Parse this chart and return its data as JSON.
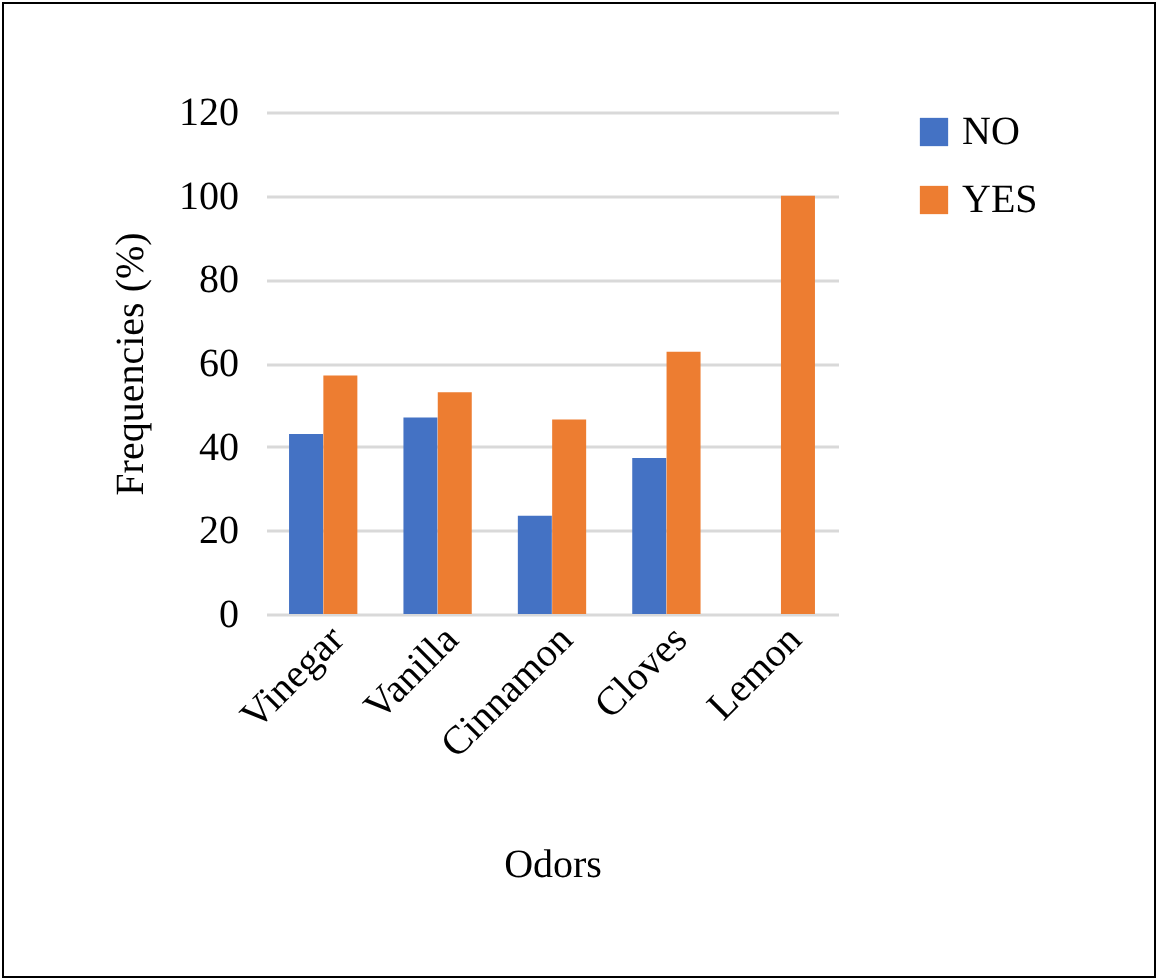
{
  "chart_data": {
    "type": "bar",
    "xlabel": "Odors",
    "ylabel": "Frequencies (%)",
    "categories": [
      "Vinegar",
      "Vanilla",
      "Cinnamon",
      "Cloves",
      "Lemon"
    ],
    "series": [
      {
        "name": "NO",
        "color": "#4472c4",
        "values": [
          43,
          47,
          23.5,
          37.3,
          0
        ]
      },
      {
        "name": "YES",
        "color": "#ed7d31",
        "values": [
          57,
          53,
          46.5,
          62.7,
          100
        ]
      }
    ],
    "ylim": [
      0,
      120
    ],
    "yticks": [
      0,
      20,
      40,
      60,
      80,
      100,
      120
    ],
    "grid": "y",
    "legend": "right"
  }
}
